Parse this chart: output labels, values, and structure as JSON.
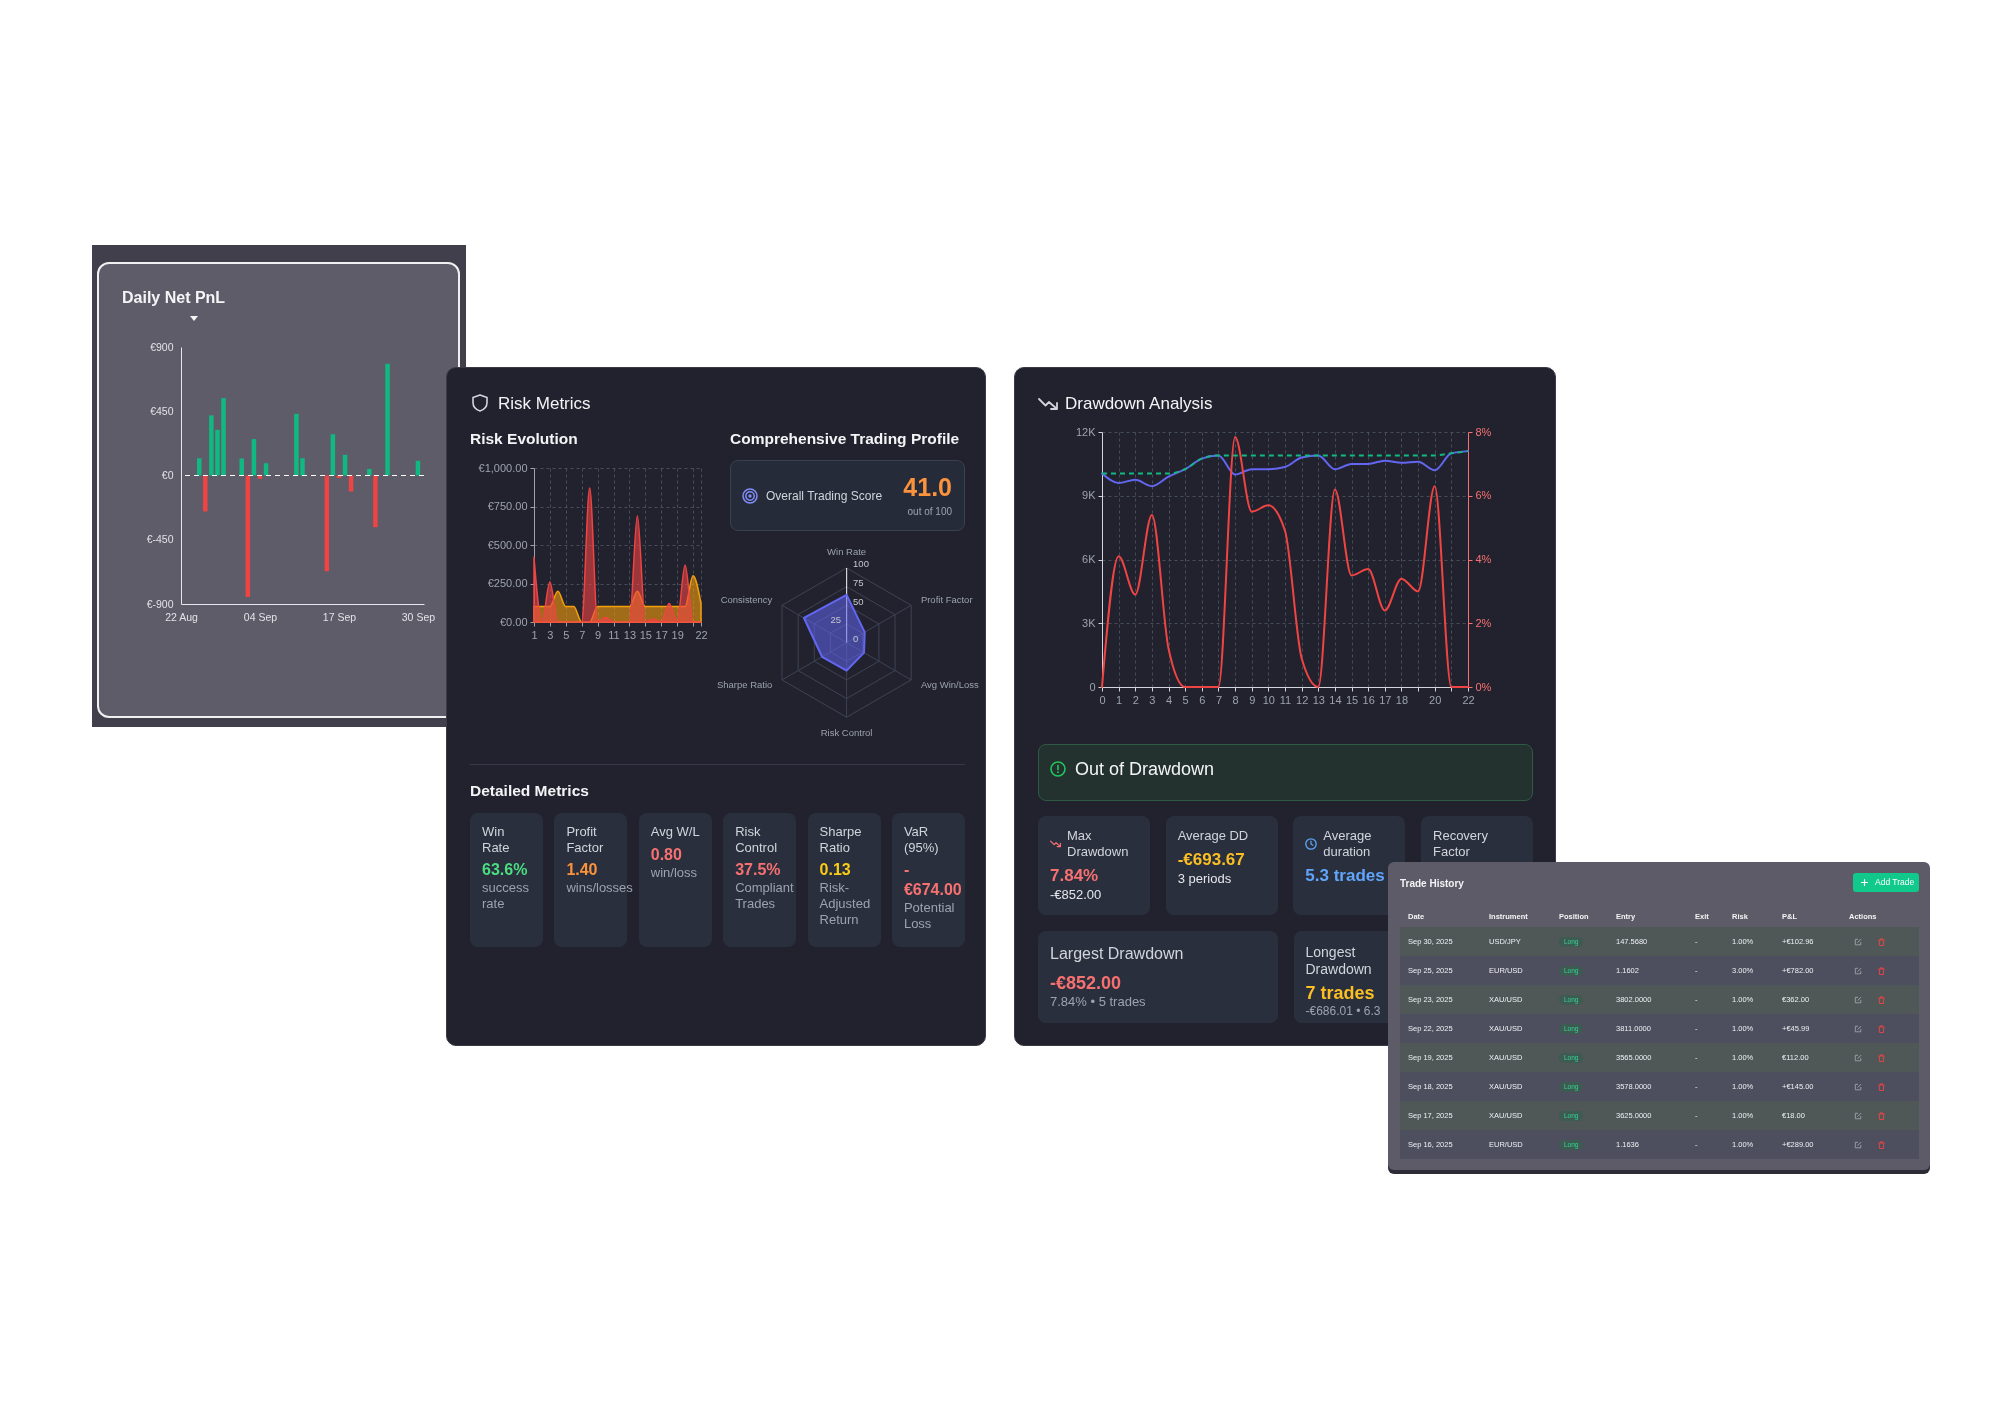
{
  "chart_data": [
    {
      "type": "bar",
      "title": "Daily Net PnL",
      "x": [
        "--08-25",
        "--08-26",
        "--08-27",
        "--08-28",
        "--08-29",
        "--09-01",
        "--09-02",
        "--09-03",
        "--09-04",
        "--09-05",
        "--09-10",
        "--09-11",
        "--09-15",
        "--09-16",
        "--09-17",
        "--09-18",
        "--09-19",
        "--09-22",
        "--09-23",
        "--09-25",
        "--09-30"
      ],
      "values": [
        121,
        -252,
        421,
        320,
        542,
        119,
        -850,
        255,
        -23,
        86,
        432,
        121,
        -670,
        289,
        -18,
        145,
        -112,
        46,
        -362,
        782,
        103
      ],
      "colors": [
        "#10b981",
        "#ef4444",
        "#10b981",
        "#10b981",
        "#10b981",
        "#10b981",
        "#ef4444",
        "#10b981",
        "#ef4444",
        "#10b981",
        "#10b981",
        "#10b981",
        "#ef4444",
        "#10b981",
        "#ef4444",
        "#10b981",
        "#ef4444",
        "#10b981",
        "#ef4444",
        "#10b981",
        "#10b981"
      ],
      "xlim": [
        "--08-22",
        "--10-01"
      ],
      "xticks": [
        {
          "value": "--08-22",
          "label": "22 Aug"
        },
        {
          "value": "--09-04",
          "label": "04 Sep"
        },
        {
          "value": "--09-17",
          "label": "17 Sep"
        },
        {
          "value": "--09-30",
          "label": "30 Sep"
        }
      ],
      "ylim": [
        -900,
        900
      ],
      "yticks": [
        {
          "value": 900,
          "label": "€900"
        },
        {
          "value": 450,
          "label": "€450"
        },
        {
          "value": 0,
          "label": "€0"
        },
        {
          "value": -450,
          "label": "€-450"
        },
        {
          "value": -900,
          "label": "€-900"
        }
      ],
      "ref_lines": [
        {
          "axis": "y",
          "value": 0,
          "color": "#ffffff",
          "line_style": "dashed"
        }
      ]
    },
    {
      "type": "area",
      "title": "Risk Metrics",
      "subtitle": "Risk Evolution",
      "x": [
        1,
        2,
        3,
        4,
        5,
        6,
        7,
        8,
        9,
        10,
        11,
        12,
        13,
        14,
        15,
        16,
        17,
        18,
        19,
        20,
        21,
        22
      ],
      "series": [
        {
          "color": "#f59e0b",
          "values": [
            100,
            100,
            100,
            200,
            100,
            100,
            0,
            0,
            100,
            100,
            100,
            100,
            100,
            200,
            100,
            100,
            100,
            100,
            100,
            100,
            300,
            120
          ]
        },
        {
          "color": "#ef4444",
          "values": [
            420,
            0,
            260,
            0,
            0,
            0,
            0,
            870,
            0,
            30,
            0,
            0,
            0,
            690,
            0,
            20,
            0,
            120,
            0,
            370,
            0,
            0
          ]
        }
      ],
      "xlim": [
        1,
        22
      ],
      "xticks": [
        1,
        3,
        5,
        7,
        9,
        11,
        13,
        15,
        17,
        19,
        {
          "value": 21,
          "label": null
        },
        22
      ],
      "ylim": [
        0,
        1000
      ],
      "yticks": [
        {
          "value": 0,
          "label": "€0.00"
        },
        {
          "value": 250,
          "label": "€250.00"
        },
        {
          "value": 500,
          "label": "€500.00"
        },
        {
          "value": 750,
          "label": "€750.00"
        },
        {
          "value": 1000,
          "label": "€1,000.00"
        }
      ],
      "grid": true
    },
    {
      "type": "radar",
      "title": "Comprehensive Trading Profile",
      "annotations": [
        "Overall Trading Score",
        "41.0",
        "out of 100"
      ],
      "categories": [
        "Win Rate",
        "Profit Factor",
        "Avg Win/Loss",
        "Risk Control",
        "Sharpe Ratio",
        "Consistency"
      ],
      "series": [
        {
          "color": "#6366f1",
          "values": [
            64,
            28,
            27,
            37.5,
            38,
            66
          ]
        }
      ],
      "ylim": [
        0,
        100
      ],
      "yticks": [
        0,
        25,
        50,
        75,
        100
      ],
      "grid": true
    },
    {
      "type": "other",
      "title": "Detailed Metrics",
      "categories": [
        "Win Rate",
        "Profit Factor",
        "Avg W/L",
        "Risk Control",
        "Sharpe Ratio",
        "VaR (95%)"
      ],
      "value_labels": [
        "63.6%",
        "1.40",
        "0.80",
        "37.5%",
        "0.13",
        "-€674.00"
      ],
      "annotations": [
        "success rate",
        "wins/losses",
        "win/loss",
        "Compliant Trades",
        "Risk-Adjusted Return",
        "Potential Loss"
      ],
      "colors": [
        "#4ade80",
        "#fb923c",
        "#f87171",
        "#f87171",
        "#facc15",
        "#f87171"
      ]
    },
    {
      "type": "line",
      "title": "Drawdown Analysis",
      "x": [
        0,
        1,
        2,
        3,
        4,
        5,
        6,
        7,
        8,
        9,
        10,
        11,
        12,
        13,
        14,
        15,
        16,
        17,
        18,
        19,
        20,
        21,
        22
      ],
      "series": [
        {
          "color": "#6366f1",
          "values": [
            10050,
            9600,
            9750,
            9450,
            9900,
            10250,
            10750,
            10900,
            10000,
            10250,
            10250,
            10350,
            10800,
            10900,
            10250,
            10500,
            10500,
            10650,
            10550,
            10600,
            10200,
            11000,
            11100
          ]
        },
        {
          "color": "#10b981",
          "line_style": "dashed",
          "values": [
            10050,
            10050,
            10050,
            10050,
            10050,
            10250,
            10750,
            10900,
            10900,
            10900,
            10900,
            10900,
            10900,
            10900,
            10900,
            10900,
            10900,
            10900,
            10900,
            10900,
            10900,
            11000,
            11100
          ]
        },
        {
          "color": "#ef4444",
          "axis": "y2",
          "values": [
            0,
            4.1,
            2.9,
            5.4,
            1.2,
            0,
            0,
            0,
            7.84,
            5.5,
            5.7,
            4.9,
            0.9,
            0,
            6.2,
            3.5,
            3.7,
            2.4,
            3.4,
            3.0,
            6.3,
            0,
            0
          ]
        }
      ],
      "xlim": [
        0,
        22
      ],
      "xticks": [
        0,
        1,
        2,
        3,
        4,
        5,
        6,
        7,
        8,
        9,
        10,
        11,
        12,
        13,
        14,
        15,
        16,
        17,
        18,
        {
          "value": 19,
          "label": null
        },
        20,
        {
          "value": 21,
          "label": null
        },
        22
      ],
      "ylim": [
        0,
        12000
      ],
      "yticks": [
        0,
        {
          "value": 3000,
          "label": "3K"
        },
        {
          "value": 6000,
          "label": "6K"
        },
        {
          "value": 9000,
          "label": "9K"
        },
        {
          "value": 12000,
          "label": "12K"
        }
      ],
      "y2lim": [
        0,
        8
      ],
      "y2ticks": [
        {
          "value": 0,
          "label": "0%"
        },
        {
          "value": 2,
          "label": "2%"
        },
        {
          "value": 4,
          "label": "4%"
        },
        {
          "value": 6,
          "label": "6%"
        },
        {
          "value": 8,
          "label": "8%"
        }
      ],
      "grid": true
    },
    {
      "type": "other",
      "title": "Out of Drawdown",
      "categories": [
        "Max Drawdown",
        "Average DD",
        "Average duration",
        "Recovery Factor"
      ],
      "value_labels": [
        "7.84%",
        "-€693.67",
        "5.3 trades",
        null
      ],
      "annotations": [
        "-€852.00",
        "3 periods"
      ],
      "colors": [
        "#f87171",
        "#fbbf24",
        "#60a5fa"
      ]
    },
    {
      "type": "other",
      "categories": [
        "Largest Drawdown",
        "Longest Drawdown"
      ],
      "value_labels": [
        "-€852.00",
        "7 trades"
      ],
      "annotations": [
        "7.84% • 5 trades",
        "-€686.01 • 6.3"
      ],
      "colors": [
        "#f87171",
        "#fbbf24"
      ]
    },
    {
      "type": "other",
      "title": "Trade History",
      "annotations": [
        "Add Trade"
      ],
      "categories": [
        "Date",
        "Instrument",
        "Position",
        "Entry",
        "Exit",
        "Risk",
        "P&L",
        "Actions"
      ],
      "cell_labels": [
        [
          "Sep 30, 2025",
          "USD/JPY",
          "Long",
          "147.5680",
          "-",
          "1.00%",
          "+€102.96"
        ],
        [
          "Sep 25, 2025",
          "EUR/USD",
          "Long",
          "1.1602",
          "-",
          "3.00%",
          "+€782.00"
        ],
        [
          "Sep 23, 2025",
          "XAU/USD",
          "Long",
          "3802.0000",
          "-",
          "1.00%",
          "€362.00"
        ],
        [
          "Sep 22, 2025",
          "XAU/USD",
          "Long",
          "3811.0000",
          "-",
          "1.00%",
          "+€45.99"
        ],
        [
          "Sep 19, 2025",
          "XAU/USD",
          "Long",
          "3565.0000",
          "-",
          "1.00%",
          "€112.00"
        ],
        [
          "Sep 18, 2025",
          "XAU/USD",
          "Long",
          "3578.0000",
          "-",
          "1.00%",
          "+€145.00"
        ],
        [
          "Sep 17, 2025",
          "XAU/USD",
          "Long",
          "3625.0000",
          "-",
          "1.00%",
          "€18.00"
        ],
        [
          "Sep 16, 2025",
          "EUR/USD",
          "Long",
          "1.1636",
          "-",
          "1.00%",
          "+€289.00"
        ]
      ]
    }
  ]
}
